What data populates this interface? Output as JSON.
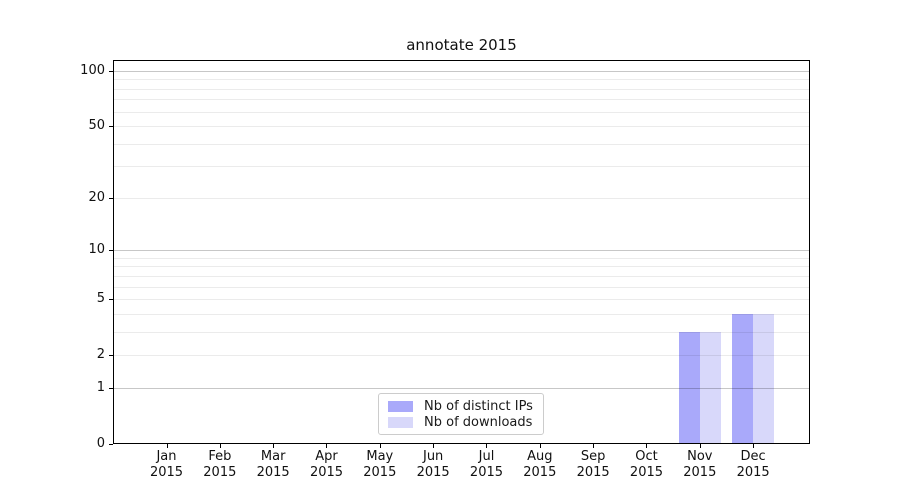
{
  "chart_data": {
    "type": "bar",
    "title": "annotate 2015",
    "categories": [
      "Jan 2015",
      "Feb 2015",
      "Mar 2015",
      "Apr 2015",
      "May 2015",
      "Jun 2015",
      "Jul 2015",
      "Aug 2015",
      "Sep 2015",
      "Oct 2015",
      "Nov 2015",
      "Dec 2015"
    ],
    "series": [
      {
        "name": "Nb of distinct IPs",
        "color": "#a9a9fa",
        "values": [
          0,
          0,
          0,
          0,
          0,
          0,
          0,
          0,
          0,
          0,
          3,
          4
        ]
      },
      {
        "name": "Nb of downloads",
        "color": "#d8d8fa",
        "values": [
          0,
          0,
          0,
          0,
          0,
          0,
          0,
          0,
          0,
          0,
          3,
          4
        ]
      }
    ],
    "y_axis": {
      "scale": "log1p",
      "tick_labels": [
        "0",
        "1",
        "2",
        "5",
        "10",
        "20",
        "50",
        "100"
      ],
      "tick_values": [
        0,
        1,
        2,
        5,
        10,
        20,
        50,
        100
      ],
      "decade_gridlines": [
        1,
        10,
        100
      ],
      "minor_gridlines": [
        3,
        4,
        6,
        7,
        8,
        9,
        30,
        40,
        60,
        70,
        80,
        90
      ]
    },
    "x_axis": {
      "tick_count": 12
    },
    "grid": true,
    "legend_position": "lower center",
    "colors": {
      "axis": "#000000",
      "grid_major": "rgba(0,0,0,0.22)",
      "grid_minor": "rgba(0,0,0,0.08)",
      "background": "#ffffff"
    }
  }
}
